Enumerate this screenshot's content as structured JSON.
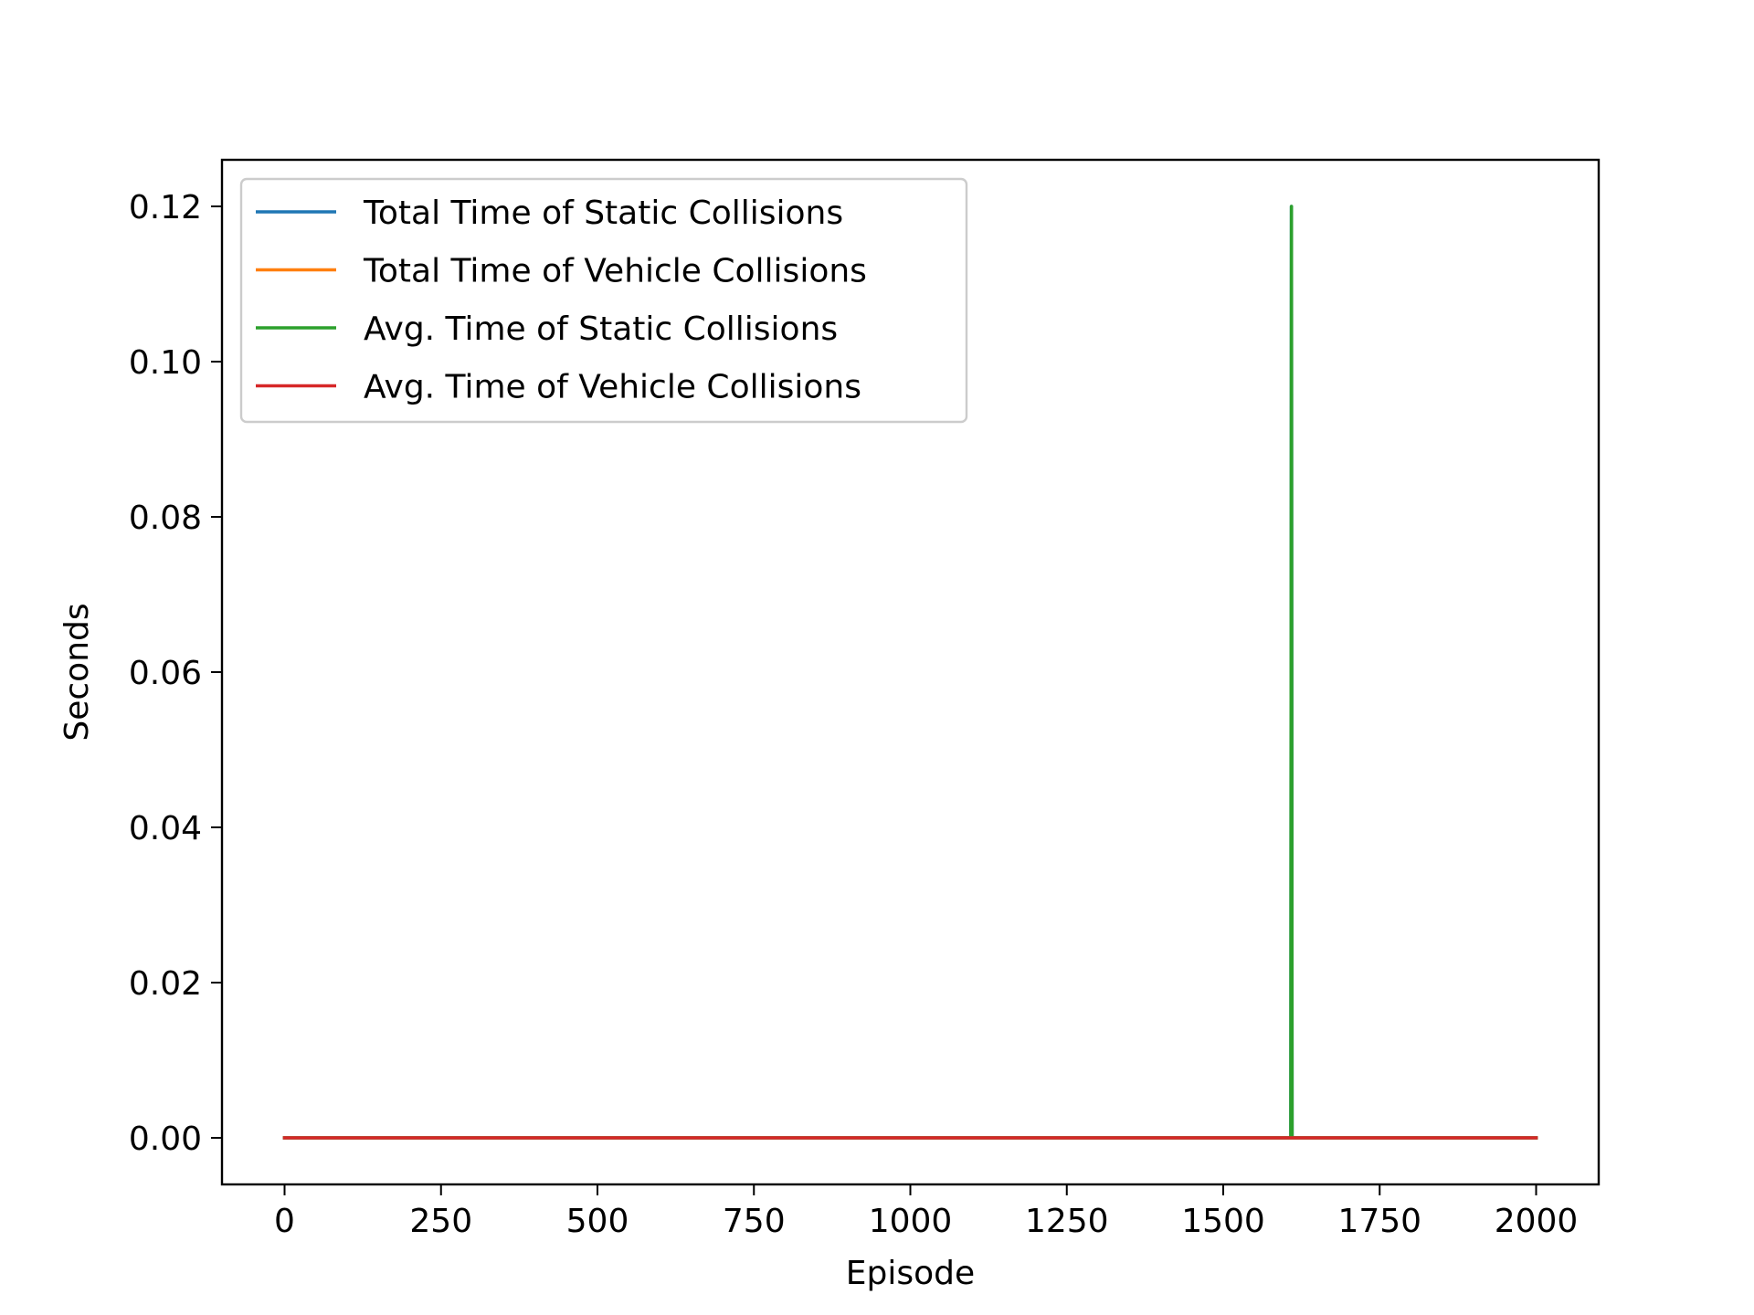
{
  "chart_data": {
    "type": "line",
    "title": "",
    "xlabel": "Episode",
    "ylabel": "Seconds",
    "xlim": [
      -100,
      2100
    ],
    "ylim": [
      -0.006,
      0.126
    ],
    "xticks": [
      0,
      250,
      500,
      750,
      1000,
      1250,
      1500,
      1750,
      2000
    ],
    "xtick_labels": [
      "0",
      "250",
      "500",
      "750",
      "1000",
      "1250",
      "1500",
      "1750",
      "2000"
    ],
    "yticks": [
      0.0,
      0.02,
      0.04,
      0.06,
      0.08,
      0.1,
      0.12
    ],
    "ytick_labels": [
      "0.00",
      "0.02",
      "0.04",
      "0.06",
      "0.08",
      "0.10",
      "0.12"
    ],
    "grid": false,
    "legend_position": "top-left",
    "series": [
      {
        "name": "Total Time of Static Collisions",
        "color": "#1f77b4",
        "points": [
          [
            0,
            0
          ],
          [
            1608,
            0
          ],
          [
            1609,
            0.12
          ],
          [
            1610,
            0
          ],
          [
            2000,
            0
          ]
        ]
      },
      {
        "name": "Total Time of Vehicle Collisions",
        "color": "#ff7f0e",
        "points": [
          [
            0,
            0
          ],
          [
            2000,
            0
          ]
        ]
      },
      {
        "name": "Avg. Time of Static Collisions",
        "color": "#2ca02c",
        "points": [
          [
            0,
            0
          ],
          [
            1608,
            0
          ],
          [
            1609,
            0.12
          ],
          [
            1610,
            0
          ],
          [
            2000,
            0
          ]
        ]
      },
      {
        "name": "Avg. Time of Vehicle Collisions",
        "color": "#d62728",
        "points": [
          [
            0,
            0
          ],
          [
            2000,
            0
          ]
        ]
      }
    ]
  }
}
